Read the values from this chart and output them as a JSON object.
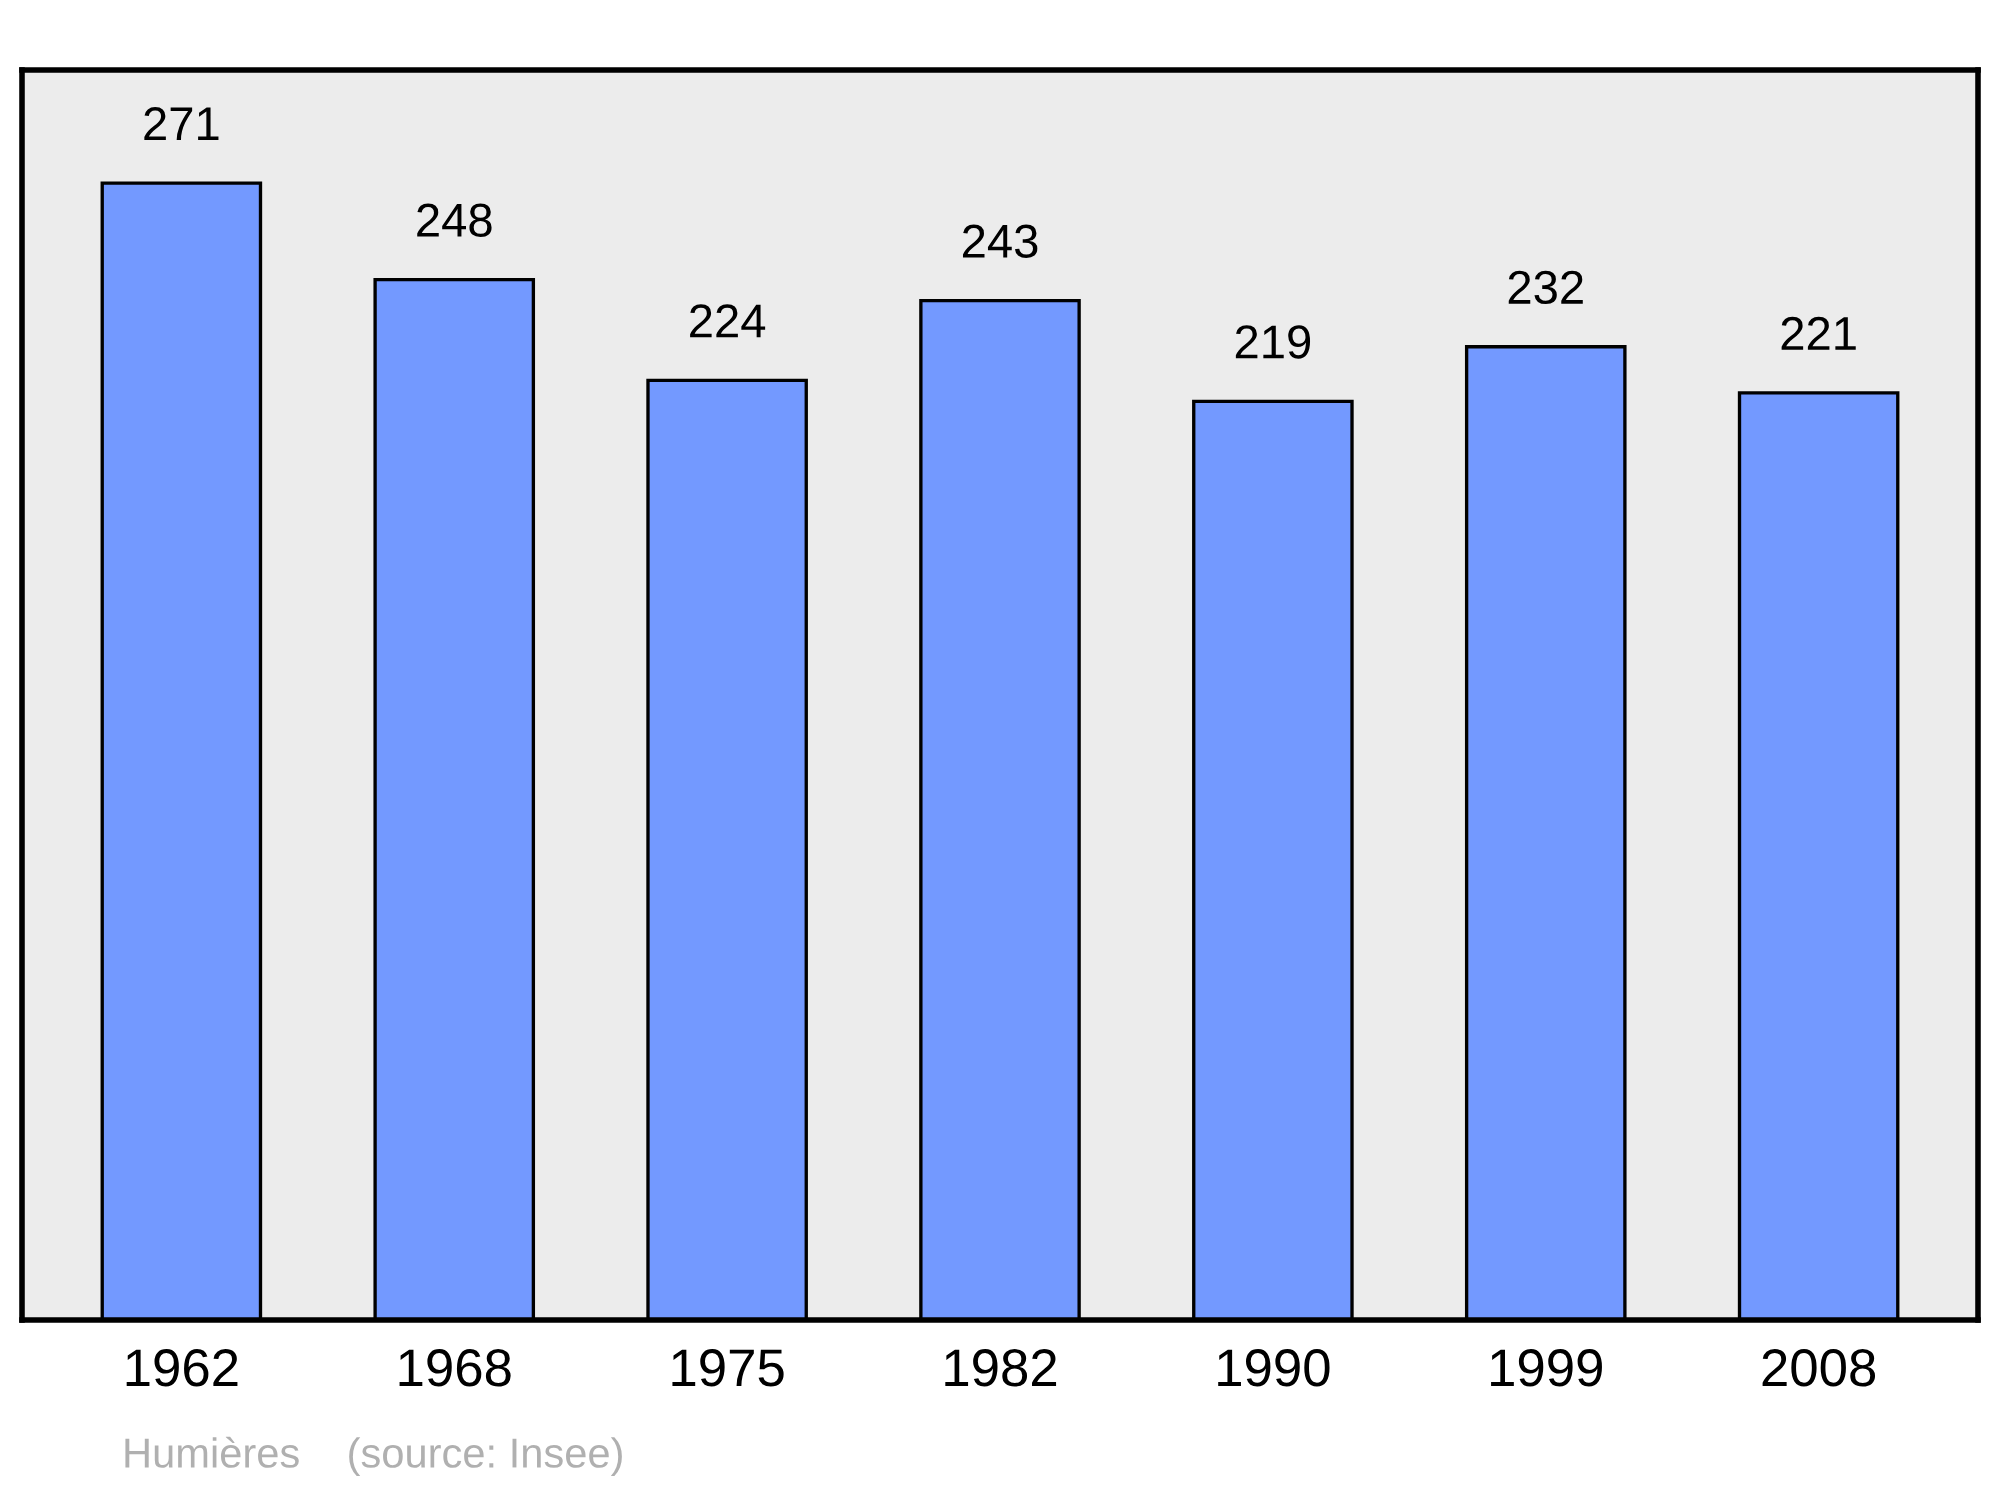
{
  "chart_data": {
    "type": "bar",
    "categories": [
      "1962",
      "1968",
      "1975",
      "1982",
      "1990",
      "1999",
      "2008"
    ],
    "values": [
      271,
      248,
      224,
      243,
      219,
      232,
      221
    ],
    "color": "#7399ff",
    "ylim": [
      0,
      298
    ],
    "data_labels": true,
    "grid": false,
    "legend": false,
    "tick_labels": "x",
    "annotations": [
      "Humières    (source: Insee)"
    ]
  }
}
